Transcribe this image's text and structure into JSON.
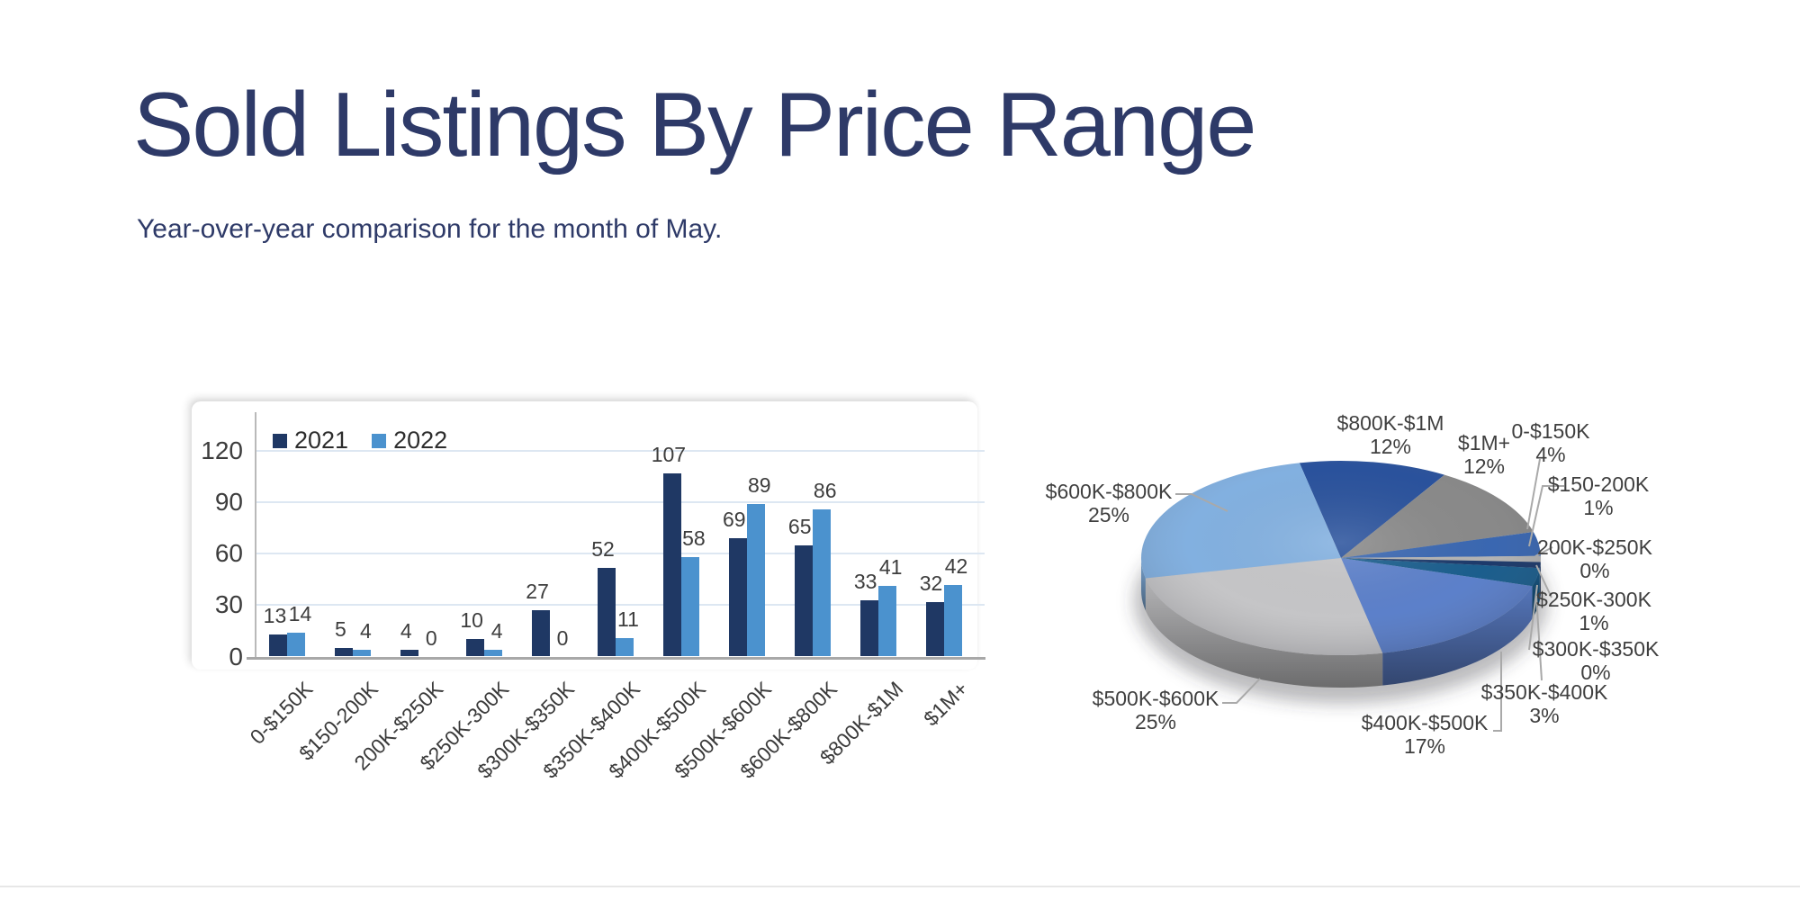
{
  "page": {
    "title": "Sold Listings By Price Range",
    "subtitle": "Year-over-year comparison for the month of May."
  },
  "colors": {
    "heading": "#2e3a68",
    "bar_2021": "#1f3864",
    "bar_2022": "#4b92ce",
    "gridline": "#dde7f2",
    "axis": "#a8a8a8",
    "leader_line": "#a9a9a9"
  },
  "chart_data": [
    {
      "type": "bar",
      "categories": [
        "0-$150K",
        "$150-200K",
        "200K-$250K",
        "$250K-300K",
        "$300K-$350K",
        "$350K-$400K",
        "$400K-$500K",
        "$500K-$600K",
        "$600K-$800K",
        "$800K-$1M",
        "$1M+"
      ],
      "series": [
        {
          "name": "2021",
          "color": "#1f3864",
          "values": [
            13,
            5,
            4,
            10,
            27,
            52,
            107,
            69,
            65,
            33,
            32
          ]
        },
        {
          "name": "2022",
          "color": "#4b92ce",
          "values": [
            14,
            4,
            0,
            4,
            0,
            11,
            58,
            89,
            86,
            41,
            42
          ]
        }
      ],
      "ylabel": "",
      "xlabel": "",
      "ylim": [
        0,
        120
      ],
      "yticks": [
        0,
        30,
        60,
        90,
        120
      ],
      "grid": true,
      "legend_position": "top-left",
      "bar_value_labels": true
    },
    {
      "type": "pie",
      "style": "3d",
      "start_angle_deg": -12,
      "clockwise": true,
      "slices": [
        {
          "label": "$800K-$1M",
          "pct": 12,
          "color": "#2a529c"
        },
        {
          "label": "$1M+",
          "pct": 12,
          "color": "#898989"
        },
        {
          "label": "0-$150K",
          "pct": 4,
          "color": "#3a67b1"
        },
        {
          "label": "$150-200K",
          "pct": 1,
          "color": "#b3b3b3"
        },
        {
          "label": "200K-$250K",
          "pct": 0,
          "color": "#9aa7b8"
        },
        {
          "label": "$250K-300K",
          "pct": 1,
          "color": "#1d3a6b"
        },
        {
          "label": "$300K-$350K",
          "pct": 0,
          "color": "#35618c"
        },
        {
          "label": "$350K-$400K",
          "pct": 3,
          "color": "#1b5e8d"
        },
        {
          "label": "$400K-$500K",
          "pct": 17,
          "color": "#5c80ca"
        },
        {
          "label": "$500K-$600K",
          "pct": 25,
          "color": "#c5c5c7"
        },
        {
          "label": "$600K-$800K",
          "pct": 25,
          "color": "#82b0e0"
        }
      ]
    }
  ]
}
